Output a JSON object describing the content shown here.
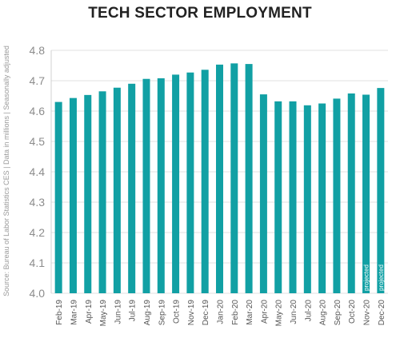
{
  "chart_data": {
    "type": "bar",
    "title": "TECH SECTOR EMPLOYMENT",
    "side_note": "Source: Bureau of Labor Statistics CES | Data in millions | Seasonally adjusted",
    "categories": [
      "Feb-19",
      "Mar-19",
      "Apr-19",
      "May-19",
      "Jun-19",
      "Jul-19",
      "Aug-19",
      "Sep-19",
      "Oct-19",
      "Nov-19",
      "Dec-19",
      "Jan-20",
      "Feb-20",
      "Mar-20",
      "Apr-20",
      "May-20",
      "Jun-20",
      "Jul-20",
      "Aug-20",
      "Sep-20",
      "Oct-20",
      "Nov-20",
      "Dec-20"
    ],
    "values": [
      4.63,
      4.643,
      4.653,
      4.665,
      4.677,
      4.69,
      4.706,
      4.708,
      4.72,
      4.727,
      4.736,
      4.753,
      4.757,
      4.755,
      4.655,
      4.632,
      4.632,
      4.619,
      4.625,
      4.641,
      4.658,
      4.654,
      4.676
    ],
    "bar_labels": [
      "",
      "",
      "",
      "",
      "",
      "",
      "",
      "",
      "",
      "",
      "",
      "",
      "",
      "",
      "",
      "",
      "",
      "",
      "",
      "",
      "",
      "projected",
      "projected"
    ],
    "ylim": [
      4.0,
      4.8
    ],
    "yticks": [
      "4.0",
      "4.1",
      "4.2",
      "4.3",
      "4.4",
      "4.5",
      "4.6",
      "4.7",
      "4.8"
    ],
    "grid": true,
    "bar_color": "#11a0a4",
    "grid_color": "#e2e2e2"
  }
}
